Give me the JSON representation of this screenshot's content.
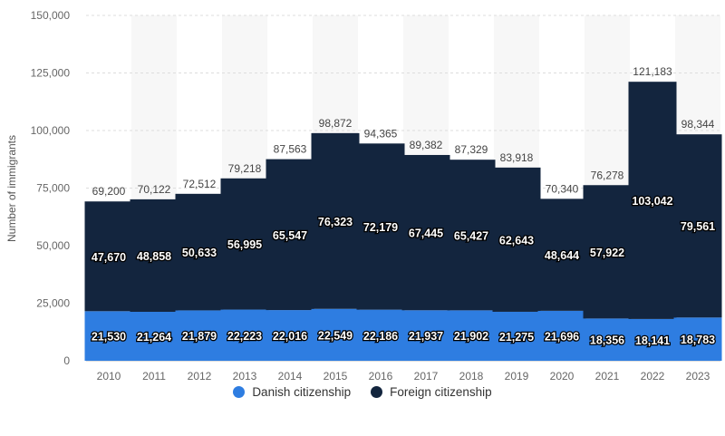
{
  "chart_data": {
    "type": "bar",
    "stacked": true,
    "title": "",
    "xlabel": "",
    "ylabel": "Number of immigrants",
    "ylim": [
      0,
      150000
    ],
    "yticks": [
      "0",
      "25,000",
      "50,000",
      "75,000",
      "100,000",
      "125,000",
      "150,000"
    ],
    "ytick_values": [
      0,
      25000,
      50000,
      75000,
      100000,
      125000,
      150000
    ],
    "grid": true,
    "legend_position": "bottom",
    "categories": [
      "2010",
      "2011",
      "2012",
      "2013",
      "2014",
      "2015",
      "2016",
      "2017",
      "2018",
      "2019",
      "2020",
      "2021",
      "2022",
      "2023"
    ],
    "series": [
      {
        "name": "Danish citizenship",
        "color": "#2e7de1",
        "values": [
          21530,
          21264,
          21879,
          22223,
          22016,
          22549,
          22186,
          21937,
          21902,
          21275,
          21696,
          18356,
          18141,
          18783
        ],
        "labels": [
          "21,530",
          "21,264",
          "21,879",
          "22,223",
          "22,016",
          "22,549",
          "22,186",
          "21,937",
          "21,902",
          "21,275",
          "21,696",
          "18,356",
          "18,141",
          "18,783"
        ]
      },
      {
        "name": "Foreign citizenship",
        "color": "#13253e",
        "values": [
          47670,
          48858,
          50633,
          56995,
          65547,
          76323,
          72179,
          67445,
          65427,
          62643,
          48644,
          57922,
          103042,
          79561
        ],
        "labels": [
          "47,670",
          "48,858",
          "50,633",
          "56,995",
          "65,547",
          "76,323",
          "72,179",
          "67,445",
          "65,427",
          "62,643",
          "48,644",
          "57,922",
          "103,042",
          "79,561"
        ]
      }
    ],
    "totals": [
      69200,
      70122,
      72512,
      79218,
      87563,
      98872,
      94365,
      89382,
      87329,
      83918,
      70340,
      76278,
      121183,
      98344
    ],
    "total_labels": [
      "69,200",
      "70,122",
      "72,512",
      "79,218",
      "87,563",
      "98,872",
      "94,365",
      "89,382",
      "87,329",
      "83,918",
      "70,340",
      "76,278",
      "121,183",
      "98,344"
    ]
  },
  "legend": {
    "items": [
      {
        "label": "Danish citizenship",
        "color": "#2e7de1"
      },
      {
        "label": "Foreign citizenship",
        "color": "#13253e"
      }
    ]
  }
}
